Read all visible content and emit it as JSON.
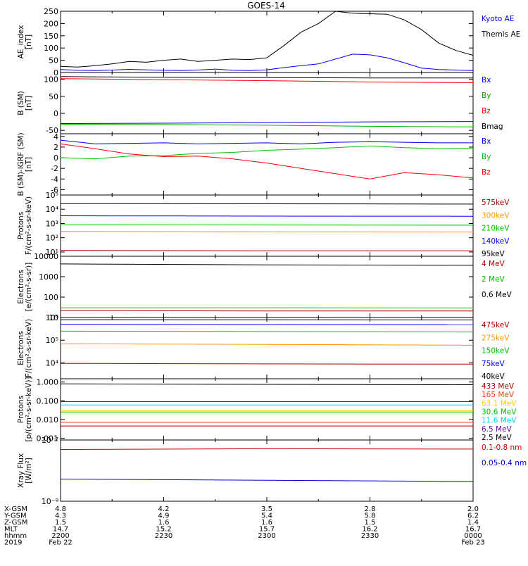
{
  "title": "GOES-14",
  "chart_data": [
    {
      "type": "line",
      "ylabel": "AE_index\n[nT]",
      "scale": "linear",
      "ylim": [
        0,
        250
      ],
      "ticks": [
        {
          "v": 0,
          "label": "0"
        },
        {
          "v": 50,
          "label": "50"
        },
        {
          "v": 100,
          "label": "100"
        },
        {
          "v": 150,
          "label": "150"
        },
        {
          "v": 200,
          "label": "200"
        },
        {
          "v": 250,
          "label": "250"
        }
      ],
      "series": [
        {
          "name": "Kyoto AE",
          "color": "#0000ff",
          "x": [
            0,
            5,
            10,
            15,
            20,
            25,
            30,
            35,
            40,
            45,
            50,
            55,
            60,
            65,
            70,
            75,
            80,
            85,
            90,
            95,
            100,
            105,
            110,
            115,
            120
          ],
          "y": [
            12,
            9,
            8,
            10,
            13,
            11,
            9,
            8,
            10,
            14,
            9,
            8,
            11,
            20,
            28,
            35,
            55,
            75,
            72,
            60,
            40,
            18,
            12,
            10,
            8
          ]
        },
        {
          "name": "Themis AE",
          "color": "#000000",
          "x": [
            0,
            5,
            10,
            15,
            20,
            25,
            30,
            35,
            40,
            45,
            50,
            55,
            60,
            65,
            70,
            75,
            80,
            85,
            90,
            95,
            100,
            105,
            110,
            115,
            120
          ],
          "y": [
            25,
            22,
            28,
            35,
            45,
            42,
            50,
            55,
            45,
            50,
            55,
            53,
            60,
            110,
            165,
            200,
            250,
            242,
            240,
            238,
            215,
            175,
            120,
            90,
            70
          ]
        }
      ]
    },
    {
      "type": "line",
      "ylabel": "B (SM)\n[nT]",
      "scale": "linear",
      "ylim": [
        -60,
        120
      ],
      "ticks": [
        {
          "v": -50,
          "label": "-50"
        },
        {
          "v": 0,
          "label": "0"
        },
        {
          "v": 50,
          "label": "50"
        },
        {
          "v": 100,
          "label": "100"
        }
      ],
      "series": [
        {
          "name": "Bx",
          "color": "#0000ff",
          "x": [
            0,
            30,
            60,
            90,
            120
          ],
          "y": [
            -30,
            -29,
            -27,
            -25,
            -24
          ]
        },
        {
          "name": "By",
          "color": "#00b000",
          "x": [
            0,
            30,
            60,
            90,
            120
          ],
          "y": [
            -32,
            -33,
            -35,
            -38,
            -40
          ]
        },
        {
          "name": "Bz",
          "color": "#ff0000",
          "x": [
            0,
            30,
            60,
            90,
            120
          ],
          "y": [
            102,
            99,
            96,
            92,
            90
          ]
        },
        {
          "name": "Bmag",
          "color": "#000000",
          "x": [
            0,
            30,
            60,
            90,
            120
          ],
          "y": [
            108,
            106,
            105,
            104,
            104
          ]
        }
      ]
    },
    {
      "type": "line",
      "ylabel": "B (SM)-IGRF (SM)\n[nT]",
      "scale": "linear",
      "ylim": [
        -7,
        4.5
      ],
      "ticks": [
        {
          "v": -6,
          "label": "-6"
        },
        {
          "v": -4,
          "label": "-4"
        },
        {
          "v": -2,
          "label": "-2"
        },
        {
          "v": 0,
          "label": "0"
        },
        {
          "v": 2,
          "label": "2"
        },
        {
          "v": 4,
          "label": "4"
        }
      ],
      "series": [
        {
          "name": "Bx",
          "color": "#0000ff",
          "x": [
            0,
            10,
            20,
            30,
            40,
            50,
            60,
            70,
            80,
            90,
            100,
            110,
            120
          ],
          "y": [
            3.3,
            2.6,
            2.7,
            2.8,
            2.6,
            2.7,
            2.8,
            2.6,
            2.9,
            3.0,
            2.9,
            2.8,
            2.8
          ]
        },
        {
          "name": "By",
          "color": "#00c000",
          "x": [
            0,
            10,
            20,
            30,
            40,
            50,
            60,
            70,
            80,
            90,
            100,
            110,
            120
          ],
          "y": [
            0.0,
            -0.2,
            0.3,
            0.4,
            0.8,
            1.0,
            1.4,
            1.6,
            1.9,
            2.2,
            1.9,
            1.7,
            1.8
          ]
        },
        {
          "name": "Bz",
          "color": "#ff0000",
          "x": [
            0,
            10,
            20,
            30,
            40,
            50,
            60,
            70,
            80,
            90,
            100,
            110,
            120
          ],
          "y": [
            2.6,
            1.7,
            0.7,
            0.2,
            0.3,
            -0.2,
            -1.0,
            -2.0,
            -3.0,
            -4.0,
            -2.8,
            -3.2,
            -3.8
          ]
        }
      ]
    },
    {
      "type": "line",
      "ylabel": "Protons\nF/(cm²-s-sr-keV)",
      "scale": "log",
      "ylim": [
        5,
        100000
      ],
      "ticks": [
        {
          "v": 10,
          "label": "10¹"
        },
        {
          "v": 100,
          "label": "10²"
        },
        {
          "v": 1000,
          "label": "10³"
        },
        {
          "v": 10000,
          "label": "10⁴"
        },
        {
          "v": 100000,
          "label": "10⁵"
        }
      ],
      "series": [
        {
          "name": "575keV",
          "color": "#b00000",
          "x": [
            0,
            60,
            120
          ],
          "y": [
            13,
            12,
            12
          ]
        },
        {
          "name": "300keV",
          "color": "#ff9900",
          "x": [
            0,
            60,
            120
          ],
          "y": [
            280,
            260,
            250
          ]
        },
        {
          "name": "210keV",
          "color": "#00c000",
          "x": [
            0,
            60,
            120
          ],
          "y": [
            800,
            780,
            760
          ]
        },
        {
          "name": "140keV",
          "color": "#0000ff",
          "x": [
            0,
            60,
            120
          ],
          "y": [
            3500,
            3300,
            3200
          ]
        },
        {
          "name": "95keV",
          "color": "#000000",
          "x": [
            0,
            60,
            120
          ],
          "y": [
            25000,
            24000,
            23000
          ]
        }
      ]
    },
    {
      "type": "line",
      "ylabel": "Electrons\n[e/(cm²-s-sr)]",
      "scale": "log",
      "ylim": [
        10,
        10000
      ],
      "ticks": [
        {
          "v": 10,
          "label": "10"
        },
        {
          "v": 100,
          "label": "100"
        },
        {
          "v": 1000,
          "label": "1000"
        },
        {
          "v": 10000,
          "label": "10000"
        }
      ],
      "series": [
        {
          "name": "4 MeV",
          "color": "#b00000",
          "x": [
            0,
            60,
            120
          ],
          "y": [
            22,
            21,
            21
          ]
        },
        {
          "name": "2 MeV",
          "color": "#00c000",
          "x": [
            0,
            60,
            120
          ],
          "y": [
            30,
            30,
            29
          ]
        },
        {
          "name": "0.6 MeV",
          "color": "#000000",
          "x": [
            0,
            60,
            120
          ],
          "y": [
            4200,
            3800,
            3600
          ]
        }
      ]
    },
    {
      "type": "line",
      "ylabel": "Electrons\nF/(cm²-s-sr-keV)",
      "scale": "log",
      "ylim": [
        2000,
        1000000
      ],
      "ticks": [
        {
          "v": 10000,
          "label": "10⁴"
        },
        {
          "v": 100000,
          "label": "10⁵"
        },
        {
          "v": 1000000,
          "label": "10⁶"
        }
      ],
      "series": [
        {
          "name": "475keV",
          "color": "#b00000",
          "x": [
            0,
            60,
            120
          ],
          "y": [
            9500,
            9000,
            8800
          ]
        },
        {
          "name": "275keV",
          "color": "#ff9900",
          "x": [
            0,
            60,
            120
          ],
          "y": [
            70000,
            65000,
            60000
          ]
        },
        {
          "name": "150keV",
          "color": "#00c000",
          "x": [
            0,
            60,
            120
          ],
          "y": [
            250000,
            240000,
            230000
          ]
        },
        {
          "name": "75keV",
          "color": "#0000ff",
          "x": [
            0,
            60,
            120
          ],
          "y": [
            500000,
            490000,
            480000
          ]
        },
        {
          "name": "40keV",
          "color": "#000000",
          "x": [
            0,
            60,
            120
          ],
          "y": [
            800000,
            790000,
            780000
          ]
        }
      ]
    },
    {
      "type": "line",
      "ylabel": "Protons\n[p/(cm²-s-sr-keV)]",
      "scale": "log",
      "ylim": [
        0.0008,
        1.5
      ],
      "ticks": [
        {
          "v": 0.001,
          "label": "0.001"
        },
        {
          "v": 0.01,
          "label": "0.010"
        },
        {
          "v": 0.1,
          "label": "0.100"
        },
        {
          "v": 1,
          "label": "1.000"
        }
      ],
      "series": [
        {
          "name": "433 MeV",
          "color": "#b00000",
          "x": [
            0,
            120
          ],
          "y": [
            0.0045,
            0.0045
          ]
        },
        {
          "name": "165 MeV",
          "color": "#ff4000",
          "x": [
            0,
            120
          ],
          "y": [
            0.007,
            0.007
          ]
        },
        {
          "name": "63.1 MeV",
          "color": "#ffcc00",
          "x": [
            0,
            120
          ],
          "y": [
            0.03,
            0.03
          ]
        },
        {
          "name": "30.6 MeV",
          "color": "#00c000",
          "x": [
            0,
            120
          ],
          "y": [
            0.025,
            0.025
          ]
        },
        {
          "name": "11.6 MeV",
          "color": "#00ccff",
          "x": [
            0,
            120
          ],
          "y": [
            0.06,
            0.06
          ]
        },
        {
          "name": "6.5 MeV",
          "color": "#6a0dad",
          "x": [
            0,
            120
          ],
          "y": [
            0.09,
            0.09
          ]
        },
        {
          "name": "2.5 MeV",
          "color": "#000000",
          "x": [
            0,
            60,
            120
          ],
          "y": [
            0.8,
            0.75,
            0.72
          ]
        }
      ]
    },
    {
      "type": "line",
      "ylabel": "Xray Flux\n[W/m²]",
      "scale": "log",
      "ylim": [
        1e-08,
        1e-07
      ],
      "ticks": [
        {
          "v": 1e-08,
          "label": "10⁻⁸"
        },
        {
          "v": 1e-07,
          "label": "10⁻⁷"
        }
      ],
      "series": [
        {
          "name": "0.1-0.8 nm",
          "color": "#cc0000",
          "x": [
            0,
            60,
            120
          ],
          "y": [
            7e-08,
            7.2e-08,
            7.1e-08
          ]
        },
        {
          "name": "0.05-0.4 nm",
          "color": "#0000cc",
          "x": [
            0,
            60,
            120
          ],
          "y": [
            2.3e-08,
            2.2e-08,
            2.1e-08
          ]
        }
      ]
    }
  ],
  "orbit": {
    "row_labels": [
      "X-GSM",
      "Y-GSM",
      "Z-GSM",
      "MLT",
      "hhmm",
      "2019"
    ],
    "columns": [
      {
        "x": 0,
        "values": [
          "4.8",
          "4.3",
          "1.5",
          "14.7",
          "2200",
          "Feb 22"
        ]
      },
      {
        "x": 30,
        "values": [
          "4.2",
          "4.9",
          "1.6",
          "15.2",
          "2230",
          ""
        ]
      },
      {
        "x": 60,
        "values": [
          "3.5",
          "5.4",
          "1.6",
          "15.7",
          "2300",
          ""
        ]
      },
      {
        "x": 90,
        "values": [
          "2.8",
          "5.8",
          "1.5",
          "16.2",
          "2330",
          ""
        ]
      },
      {
        "x": 120,
        "values": [
          "2.0",
          "6.2",
          "1.4",
          "16.7",
          "0000",
          "Feb 23"
        ]
      }
    ]
  },
  "colors": {
    "axis": "#000000",
    "background": "#ffffff"
  }
}
